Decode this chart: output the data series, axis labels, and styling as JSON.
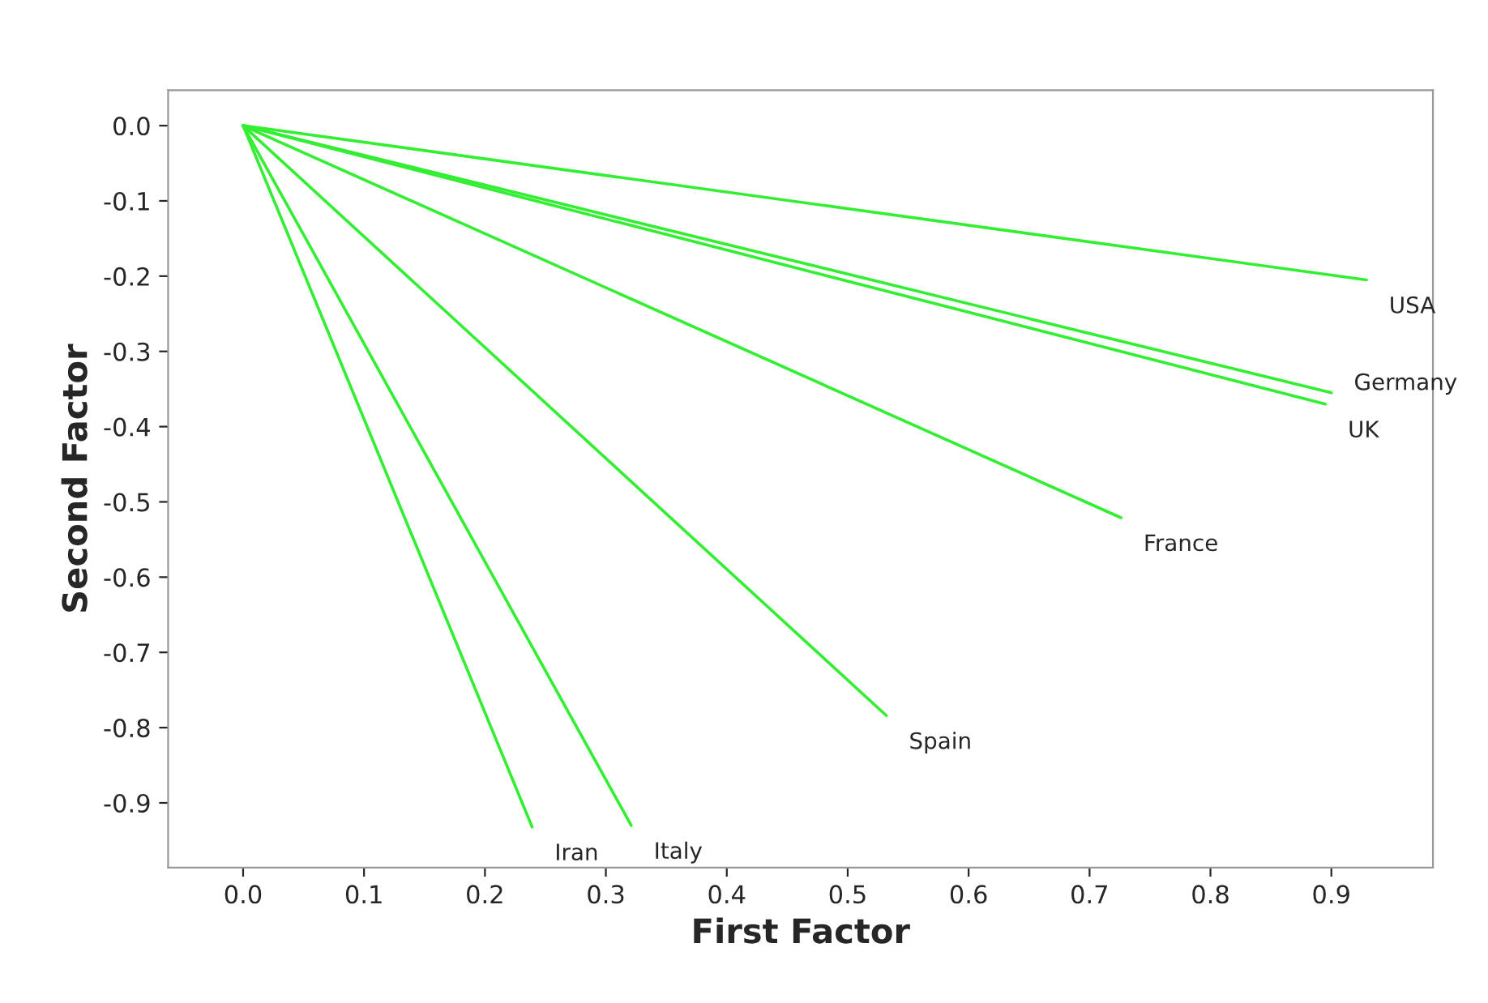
{
  "chart_data": {
    "type": "line",
    "xlabel": "First Factor",
    "ylabel": "Second Factor",
    "xlim": [
      -0.062,
      0.984
    ],
    "ylim": [
      -0.986,
      0.047
    ],
    "xticks": [
      {
        "value": 0,
        "label": "0.0"
      },
      0.1,
      0.2,
      0.3,
      0.4,
      0.5,
      0.6,
      0.7,
      0.8,
      0.9
    ],
    "yticks": [
      {
        "value": 0,
        "label": "0.0"
      },
      -0.1,
      -0.2,
      -0.3,
      -0.4,
      -0.5,
      -0.6,
      -0.7,
      -0.8,
      -0.9
    ],
    "grid": false,
    "legend": false,
    "marker": "none",
    "line_style": "solid",
    "series": [
      {
        "name": "USA",
        "color": "#33ee33",
        "x": [
          0,
          0.929
        ],
        "values": [
          0,
          -0.205
        ]
      },
      {
        "name": "Germany",
        "color": "#33ee33",
        "x": [
          0,
          0.9
        ],
        "values": [
          0,
          -0.355
        ]
      },
      {
        "name": "UK",
        "color": "#33ee33",
        "x": [
          0,
          0.895
        ],
        "values": [
          0,
          -0.37
        ]
      },
      {
        "name": "France",
        "color": "#33ee33",
        "x": [
          0,
          0.726
        ],
        "values": [
          0,
          -0.521
        ]
      },
      {
        "name": "Spain",
        "color": "#33ee33",
        "x": [
          0,
          0.532
        ],
        "values": [
          0,
          -0.784
        ]
      },
      {
        "name": "Italy",
        "color": "#33ee33",
        "x": [
          0,
          0.321
        ],
        "values": [
          0,
          -0.93
        ]
      },
      {
        "name": "Iran",
        "color": "#33ee33",
        "x": [
          0,
          0.239
        ],
        "values": [
          0,
          -0.932
        ]
      }
    ]
  }
}
